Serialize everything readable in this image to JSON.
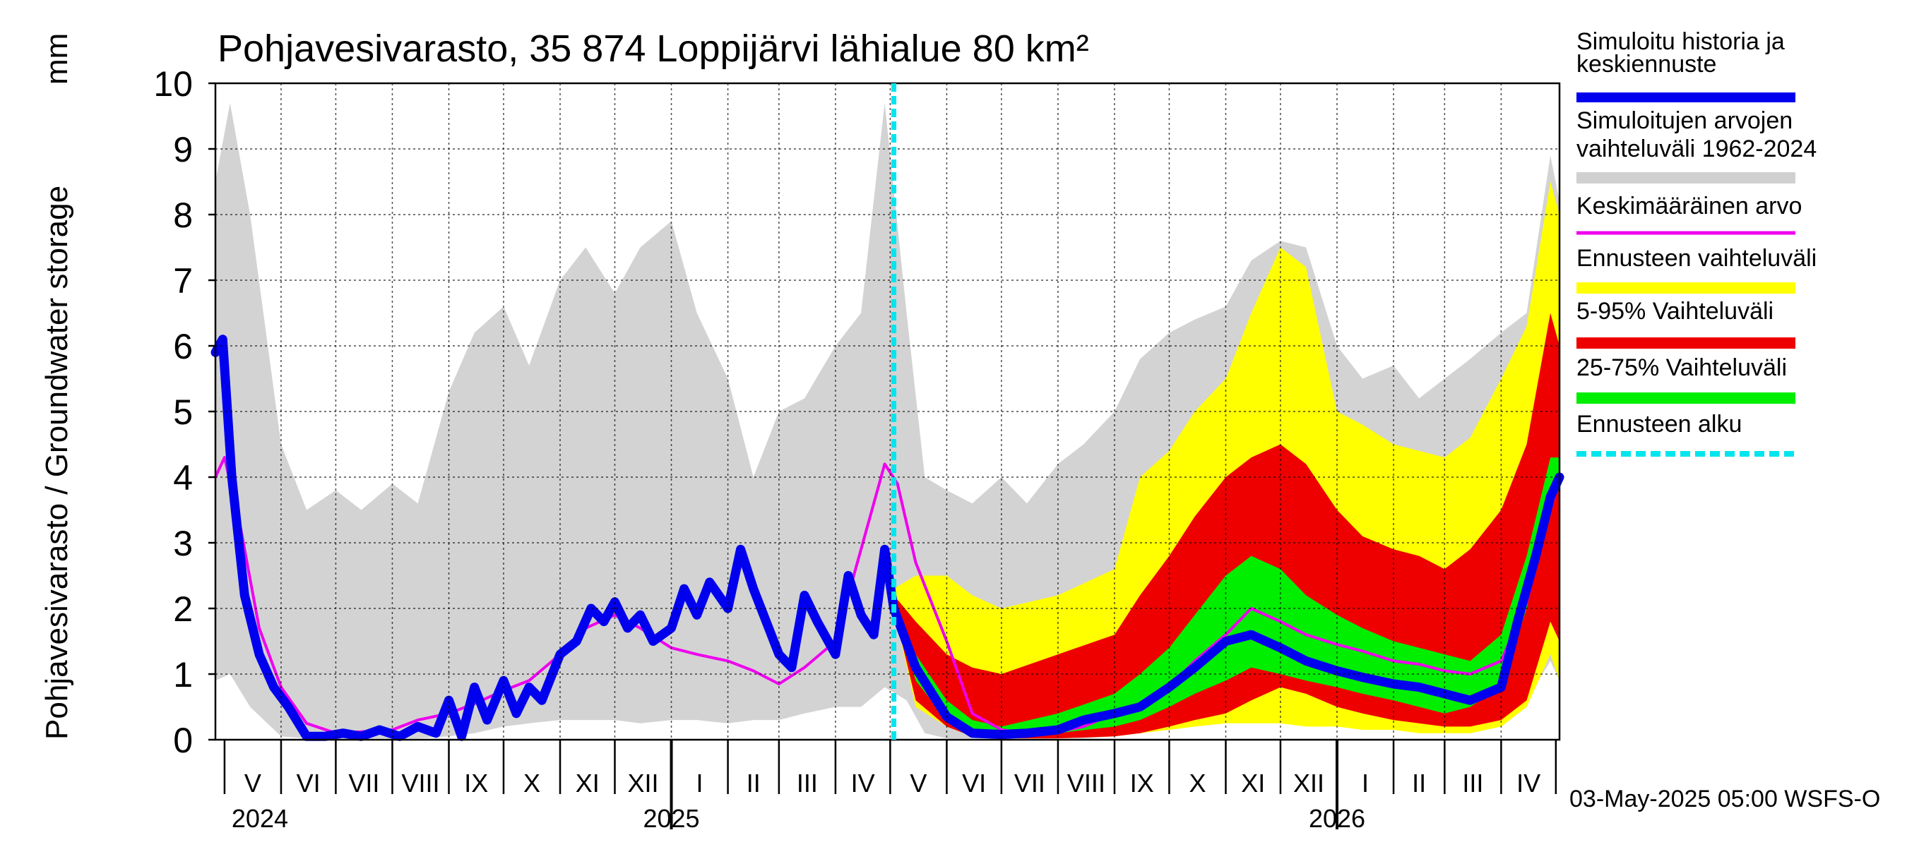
{
  "chart_data": {
    "type": "area",
    "title": "Pohjavesivarasto, 35 874 Loppijärvi lähialue 80 km²",
    "ylabel": "Pohjavesivarasto / Groundwater storage",
    "yunit": "mm",
    "ylim": [
      0,
      10
    ],
    "yticks": [
      0,
      1,
      2,
      3,
      4,
      5,
      6,
      7,
      8,
      9,
      10
    ],
    "grid": true,
    "x_start": "2024-04-26",
    "x_end": "2026-05-03",
    "forecast_start": "2025-05-03",
    "footer": "03-May-2025 05:00 WSFS-O",
    "months": [
      "V",
      "VI",
      "VII",
      "VIII",
      "IX",
      "X",
      "XI",
      "XII",
      "I",
      "II",
      "III",
      "IV",
      "V",
      "VI",
      "VII",
      "VIII",
      "IX",
      "X",
      "XI",
      "XII",
      "I",
      "II",
      "III",
      "IV"
    ],
    "month_starts": [
      "2024-05-01",
      "2024-06-01",
      "2024-07-01",
      "2024-08-01",
      "2024-09-01",
      "2024-10-01",
      "2024-11-01",
      "2024-12-01",
      "2025-01-01",
      "2025-02-01",
      "2025-03-01",
      "2025-04-01",
      "2025-05-01",
      "2025-06-01",
      "2025-07-01",
      "2025-08-01",
      "2025-09-01",
      "2025-10-01",
      "2025-11-01",
      "2025-12-01",
      "2026-01-01",
      "2026-02-01",
      "2026-03-01",
      "2026-04-01",
      "2026-05-01"
    ],
    "years": [
      {
        "label": "2024",
        "date": "2024-05-01"
      },
      {
        "label": "2025",
        "date": "2025-01-01"
      },
      {
        "label": "2026",
        "date": "2026-01-01"
      }
    ],
    "legend": [
      {
        "label": "Simuloitu historia ja keskiennuste",
        "color": "#0000ee",
        "style": "thick"
      },
      {
        "label": "Simuloitujen arvojen vaihteluväli 1962-2024",
        "color": "#d0d0d0",
        "style": "band"
      },
      {
        "label": "Keskimääräinen arvo",
        "color": "#ee00ee",
        "style": "line"
      },
      {
        "label": "Ennusteen vaihteluväli",
        "color": "#ffff00",
        "style": "band"
      },
      {
        "label": "5-95% Vaihteluväli",
        "color": "#ee0000",
        "style": "band"
      },
      {
        "label": "25-75% Vaihteluväli",
        "color": "#00ee00",
        "style": "band"
      },
      {
        "label": "Ennusteen alku",
        "color": "#00e5ee",
        "style": "dashed"
      }
    ],
    "series": [
      {
        "name": "Simuloitujen arvojen vaihteluväli 1962-2024",
        "kind": "band",
        "color": "#d3d3d3",
        "x": [
          "2024-04-26",
          "2024-05-04",
          "2024-05-15",
          "2024-06-01",
          "2024-06-15",
          "2024-07-01",
          "2024-07-15",
          "2024-08-01",
          "2024-08-15",
          "2024-09-01",
          "2024-09-15",
          "2024-10-01",
          "2024-10-15",
          "2024-11-01",
          "2024-11-15",
          "2024-12-01",
          "2024-12-15",
          "2025-01-01",
          "2025-01-15",
          "2025-02-01",
          "2025-02-15",
          "2025-03-01",
          "2025-03-15",
          "2025-04-01",
          "2025-04-15",
          "2025-04-28",
          "2025-05-10",
          "2025-05-20",
          "2025-06-01",
          "2025-06-15",
          "2025-07-01",
          "2025-07-15",
          "2025-08-01",
          "2025-08-15",
          "2025-09-01",
          "2025-09-15",
          "2025-10-01",
          "2025-10-15",
          "2025-11-01",
          "2025-11-15",
          "2025-12-01",
          "2025-12-15",
          "2026-01-01",
          "2026-01-15",
          "2026-02-01",
          "2026-02-15",
          "2026-03-01",
          "2026-03-15",
          "2026-04-01",
          "2026-04-15",
          "2026-04-28",
          "2026-05-03"
        ],
        "upper": [
          8.5,
          9.7,
          8.0,
          4.5,
          3.5,
          3.8,
          3.5,
          3.9,
          3.6,
          5.3,
          6.2,
          6.6,
          5.7,
          7.0,
          7.5,
          6.8,
          7.5,
          7.9,
          6.5,
          5.5,
          4.0,
          5.0,
          5.2,
          6.0,
          6.5,
          9.7,
          6.5,
          4.0,
          3.8,
          3.6,
          4.0,
          3.6,
          4.2,
          4.5,
          5.0,
          5.8,
          6.2,
          6.4,
          6.6,
          7.3,
          7.6,
          7.5,
          6.0,
          5.5,
          5.7,
          5.2,
          5.5,
          5.8,
          6.2,
          6.5,
          8.9,
          8.2
        ],
        "lower": [
          0.9,
          1.0,
          0.5,
          0.05,
          0.02,
          0.02,
          0.02,
          0.02,
          0.02,
          0.05,
          0.1,
          0.2,
          0.25,
          0.3,
          0.3,
          0.3,
          0.25,
          0.3,
          0.3,
          0.25,
          0.3,
          0.3,
          0.4,
          0.5,
          0.5,
          0.8,
          0.6,
          0.1,
          0.02,
          0.02,
          0.02,
          0.02,
          0.02,
          0.02,
          0.05,
          0.1,
          0.2,
          0.25,
          0.3,
          0.3,
          0.3,
          0.25,
          0.3,
          0.3,
          0.25,
          0.3,
          0.3,
          0.4,
          0.5,
          0.6,
          1.2,
          0.9
        ]
      },
      {
        "name": "Ennusteen vaihteluväli",
        "kind": "band",
        "color": "#ffff00",
        "x": [
          "2025-05-03",
          "2025-05-15",
          "2025-06-01",
          "2025-06-15",
          "2025-07-01",
          "2025-08-01",
          "2025-09-01",
          "2025-09-15",
          "2025-10-01",
          "2025-10-15",
          "2025-11-01",
          "2025-11-15",
          "2025-12-01",
          "2025-12-15",
          "2026-01-01",
          "2026-01-15",
          "2026-02-01",
          "2026-02-15",
          "2026-03-01",
          "2026-03-15",
          "2026-04-01",
          "2026-04-15",
          "2026-04-28",
          "2026-05-03"
        ],
        "upper": [
          2.3,
          2.5,
          2.5,
          2.2,
          2.0,
          2.2,
          2.6,
          4.0,
          4.4,
          5.0,
          5.5,
          6.5,
          7.5,
          7.2,
          5.0,
          4.8,
          4.5,
          4.4,
          4.3,
          4.6,
          5.5,
          6.3,
          8.5,
          8.0
        ],
        "lower": [
          2.0,
          0.5,
          0.2,
          0.05,
          0.02,
          0.02,
          0.05,
          0.1,
          0.15,
          0.2,
          0.25,
          0.25,
          0.25,
          0.2,
          0.2,
          0.15,
          0.15,
          0.1,
          0.1,
          0.1,
          0.2,
          0.5,
          1.3,
          0.9
        ]
      },
      {
        "name": "5-95% Vaihteluväli",
        "kind": "band",
        "color": "#ee0000",
        "x": [
          "2025-05-03",
          "2025-05-15",
          "2025-06-01",
          "2025-06-15",
          "2025-07-01",
          "2025-08-01",
          "2025-09-01",
          "2025-09-15",
          "2025-10-01",
          "2025-10-15",
          "2025-11-01",
          "2025-11-15",
          "2025-12-01",
          "2025-12-15",
          "2026-01-01",
          "2026-01-15",
          "2026-02-01",
          "2026-02-15",
          "2026-03-01",
          "2026-03-15",
          "2026-04-01",
          "2026-04-15",
          "2026-04-28",
          "2026-05-03"
        ],
        "upper": [
          2.2,
          1.8,
          1.3,
          1.1,
          1.0,
          1.3,
          1.6,
          2.2,
          2.8,
          3.4,
          4.0,
          4.3,
          4.5,
          4.2,
          3.5,
          3.1,
          2.9,
          2.8,
          2.6,
          2.9,
          3.5,
          4.5,
          6.5,
          6.0
        ],
        "lower": [
          2.0,
          0.6,
          0.2,
          0.05,
          0.02,
          0.02,
          0.05,
          0.1,
          0.2,
          0.3,
          0.4,
          0.6,
          0.8,
          0.7,
          0.5,
          0.4,
          0.3,
          0.25,
          0.2,
          0.2,
          0.3,
          0.6,
          1.8,
          1.5
        ]
      },
      {
        "name": "25-75% Vaihteluväli",
        "kind": "band",
        "color": "#00ee00",
        "x": [
          "2025-05-03",
          "2025-05-15",
          "2025-06-01",
          "2025-06-15",
          "2025-07-01",
          "2025-08-01",
          "2025-09-01",
          "2025-09-15",
          "2025-10-01",
          "2025-10-15",
          "2025-11-01",
          "2025-11-15",
          "2025-12-01",
          "2025-12-15",
          "2026-01-01",
          "2026-01-15",
          "2026-02-01",
          "2026-02-15",
          "2026-03-01",
          "2026-03-15",
          "2026-04-01",
          "2026-04-15",
          "2026-04-28",
          "2026-05-03"
        ],
        "upper": [
          2.1,
          1.3,
          0.6,
          0.3,
          0.2,
          0.4,
          0.7,
          1.0,
          1.4,
          1.9,
          2.5,
          2.8,
          2.6,
          2.2,
          1.9,
          1.7,
          1.5,
          1.4,
          1.3,
          1.2,
          1.6,
          2.8,
          4.3,
          4.3
        ],
        "lower": [
          2.0,
          0.9,
          0.3,
          0.1,
          0.05,
          0.1,
          0.2,
          0.3,
          0.5,
          0.7,
          0.9,
          1.1,
          1.0,
          0.9,
          0.8,
          0.7,
          0.6,
          0.5,
          0.4,
          0.5,
          0.8,
          2.0,
          3.7,
          3.8
        ]
      },
      {
        "name": "Keskimääräinen arvo",
        "kind": "line",
        "color": "#ee00ee",
        "x": [
          "2024-04-26",
          "2024-05-01",
          "2024-05-10",
          "2024-05-20",
          "2024-06-01",
          "2024-06-15",
          "2024-07-01",
          "2024-07-15",
          "2024-08-01",
          "2024-08-15",
          "2024-09-01",
          "2024-09-15",
          "2024-10-01",
          "2024-10-15",
          "2024-11-01",
          "2024-11-15",
          "2024-12-01",
          "2024-12-15",
          "2025-01-01",
          "2025-01-15",
          "2025-02-01",
          "2025-02-15",
          "2025-03-01",
          "2025-03-15",
          "2025-04-01",
          "2025-04-15",
          "2025-04-28",
          "2025-05-05",
          "2025-05-15",
          "2025-06-01",
          "2025-06-15",
          "2025-07-01",
          "2025-07-15",
          "2025-08-01",
          "2025-08-15",
          "2025-09-01",
          "2025-09-15",
          "2025-10-01",
          "2025-10-15",
          "2025-11-01",
          "2025-11-15",
          "2025-12-01",
          "2025-12-15",
          "2026-01-01",
          "2026-01-15",
          "2026-02-01",
          "2026-02-15",
          "2026-03-01",
          "2026-03-15",
          "2026-04-01",
          "2026-04-15",
          "2026-04-28",
          "2026-05-03"
        ],
        "y": [
          4.0,
          4.3,
          3.2,
          1.7,
          0.8,
          0.25,
          0.1,
          0.12,
          0.15,
          0.3,
          0.4,
          0.55,
          0.75,
          0.9,
          1.3,
          1.7,
          1.9,
          1.7,
          1.4,
          1.3,
          1.2,
          1.05,
          0.85,
          1.1,
          1.5,
          2.9,
          4.2,
          3.9,
          2.7,
          1.5,
          0.4,
          0.15,
          0.1,
          0.12,
          0.2,
          0.4,
          0.55,
          0.8,
          1.2,
          1.6,
          2.0,
          1.8,
          1.6,
          1.45,
          1.35,
          1.2,
          1.15,
          1.05,
          1.0,
          1.2,
          2.1,
          3.5,
          4.0
        ]
      },
      {
        "name": "Simuloitu historia ja keskiennuste",
        "kind": "line",
        "color": "#0000ee",
        "x": [
          "2024-04-26",
          "2024-04-30",
          "2024-05-05",
          "2024-05-12",
          "2024-05-20",
          "2024-05-28",
          "2024-06-05",
          "2024-06-15",
          "2024-06-25",
          "2024-07-05",
          "2024-07-15",
          "2024-07-25",
          "2024-08-05",
          "2024-08-15",
          "2024-08-25",
          "2024-09-01",
          "2024-09-08",
          "2024-09-15",
          "2024-09-22",
          "2024-10-01",
          "2024-10-08",
          "2024-10-15",
          "2024-10-22",
          "2024-11-01",
          "2024-11-10",
          "2024-11-18",
          "2024-11-25",
          "2024-12-01",
          "2024-12-08",
          "2024-12-15",
          "2024-12-22",
          "2025-01-01",
          "2025-01-08",
          "2025-01-15",
          "2025-01-22",
          "2025-02-01",
          "2025-02-08",
          "2025-02-15",
          "2025-02-22",
          "2025-03-01",
          "2025-03-08",
          "2025-03-15",
          "2025-03-22",
          "2025-04-01",
          "2025-04-08",
          "2025-04-15",
          "2025-04-22",
          "2025-04-28",
          "2025-05-03",
          "2025-05-15",
          "2025-06-01",
          "2025-06-15",
          "2025-07-01",
          "2025-07-15",
          "2025-08-01",
          "2025-08-15",
          "2025-09-01",
          "2025-09-15",
          "2025-10-01",
          "2025-10-15",
          "2025-11-01",
          "2025-11-15",
          "2025-12-01",
          "2025-12-15",
          "2026-01-01",
          "2026-01-15",
          "2026-02-01",
          "2026-02-15",
          "2026-03-01",
          "2026-03-15",
          "2026-04-01",
          "2026-04-10",
          "2026-04-20",
          "2026-04-28",
          "2026-05-03"
        ],
        "y": [
          5.9,
          6.1,
          4.0,
          2.2,
          1.3,
          0.8,
          0.5,
          0.05,
          0.05,
          0.1,
          0.05,
          0.15,
          0.05,
          0.2,
          0.1,
          0.6,
          0.05,
          0.8,
          0.3,
          0.9,
          0.4,
          0.8,
          0.6,
          1.3,
          1.5,
          2.0,
          1.8,
          2.1,
          1.7,
          1.9,
          1.5,
          1.7,
          2.3,
          1.9,
          2.4,
          2.0,
          2.9,
          2.3,
          1.8,
          1.3,
          1.1,
          2.2,
          1.8,
          1.3,
          2.5,
          1.9,
          1.6,
          2.9,
          2.0,
          1.1,
          0.35,
          0.1,
          0.08,
          0.1,
          0.15,
          0.3,
          0.4,
          0.5,
          0.8,
          1.1,
          1.5,
          1.6,
          1.4,
          1.2,
          1.05,
          0.95,
          0.85,
          0.8,
          0.7,
          0.6,
          0.8,
          1.8,
          2.8,
          3.7,
          4.0
        ]
      }
    ]
  }
}
